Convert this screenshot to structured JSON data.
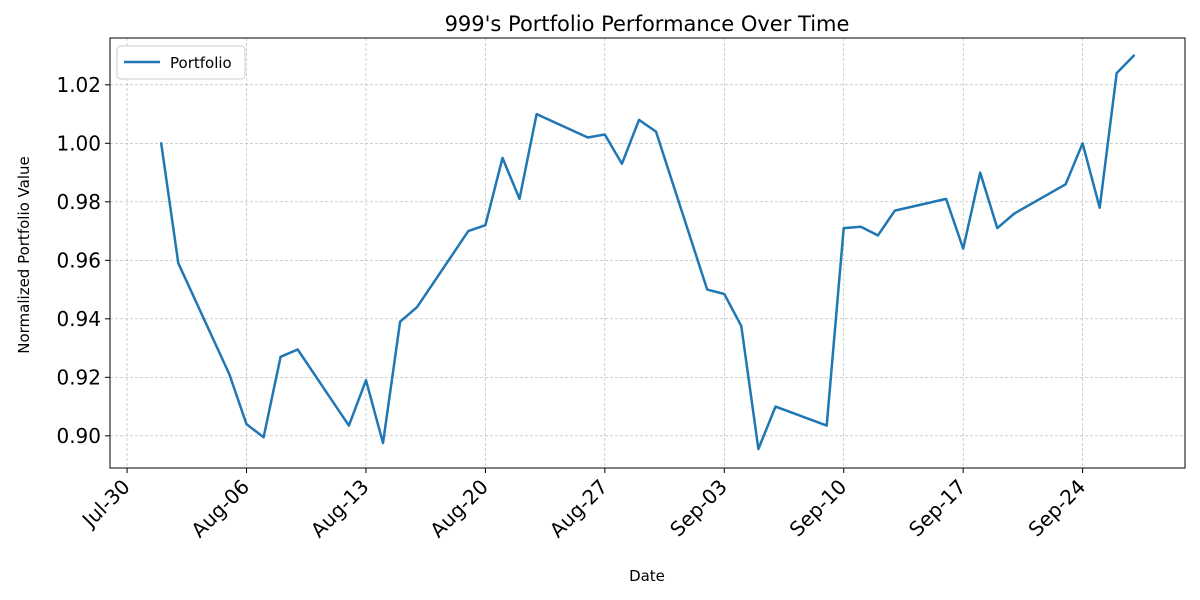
{
  "chart_data": {
    "type": "line",
    "title": "999's Portfolio Performance Over Time",
    "xlabel": "Date",
    "ylabel": "Normalized Portfolio Value",
    "grid": true,
    "legend_position": "top-left",
    "xlim": [
      "2018-07-29",
      "2018-09-30"
    ],
    "ylim": [
      0.889,
      1.036
    ],
    "x_ticks": [
      "2018-07-30",
      "2018-08-06",
      "2018-08-13",
      "2018-08-20",
      "2018-08-27",
      "2018-09-03",
      "2018-09-10",
      "2018-09-17",
      "2018-09-24"
    ],
    "x_tick_labels": [
      "Jul-30",
      "Aug-06",
      "Aug-13",
      "Aug-20",
      "Aug-27",
      "Sep-03",
      "Sep-10",
      "Sep-17",
      "Sep-24"
    ],
    "y_ticks": [
      0.9,
      0.92,
      0.94,
      0.96,
      0.98,
      1.0,
      1.02
    ],
    "y_tick_labels": [
      "0.90",
      "0.92",
      "0.94",
      "0.96",
      "0.98",
      "1.00",
      "1.02"
    ],
    "series": [
      {
        "name": "Portfolio",
        "color": "#1f77b4",
        "x": [
          "2018-08-01",
          "2018-08-02",
          "2018-08-05",
          "2018-08-06",
          "2018-08-07",
          "2018-08-08",
          "2018-08-09",
          "2018-08-12",
          "2018-08-13",
          "2018-08-14",
          "2018-08-15",
          "2018-08-16",
          "2018-08-19",
          "2018-08-20",
          "2018-08-21",
          "2018-08-22",
          "2018-08-23",
          "2018-08-26",
          "2018-08-27",
          "2018-08-28",
          "2018-08-29",
          "2018-08-30",
          "2018-09-02",
          "2018-09-03",
          "2018-09-04",
          "2018-09-05",
          "2018-09-06",
          "2018-09-09",
          "2018-09-10",
          "2018-09-11",
          "2018-09-12",
          "2018-09-13",
          "2018-09-16",
          "2018-09-17",
          "2018-09-18",
          "2018-09-19",
          "2018-09-20",
          "2018-09-23",
          "2018-09-24",
          "2018-09-25",
          "2018-09-26",
          "2018-09-27"
        ],
        "values": [
          1.0,
          0.959,
          0.921,
          0.904,
          0.8995,
          0.927,
          0.9295,
          0.9035,
          0.919,
          0.8975,
          0.939,
          0.944,
          0.97,
          0.972,
          0.995,
          0.981,
          1.01,
          1.002,
          1.003,
          0.993,
          1.008,
          1.004,
          0.95,
          0.9485,
          0.9375,
          0.8955,
          0.91,
          0.9035,
          0.971,
          0.9715,
          0.9685,
          0.977,
          0.981,
          0.964,
          0.99,
          0.971,
          0.976,
          0.986,
          1.0,
          0.978,
          1.024,
          1.03
        ]
      }
    ]
  }
}
